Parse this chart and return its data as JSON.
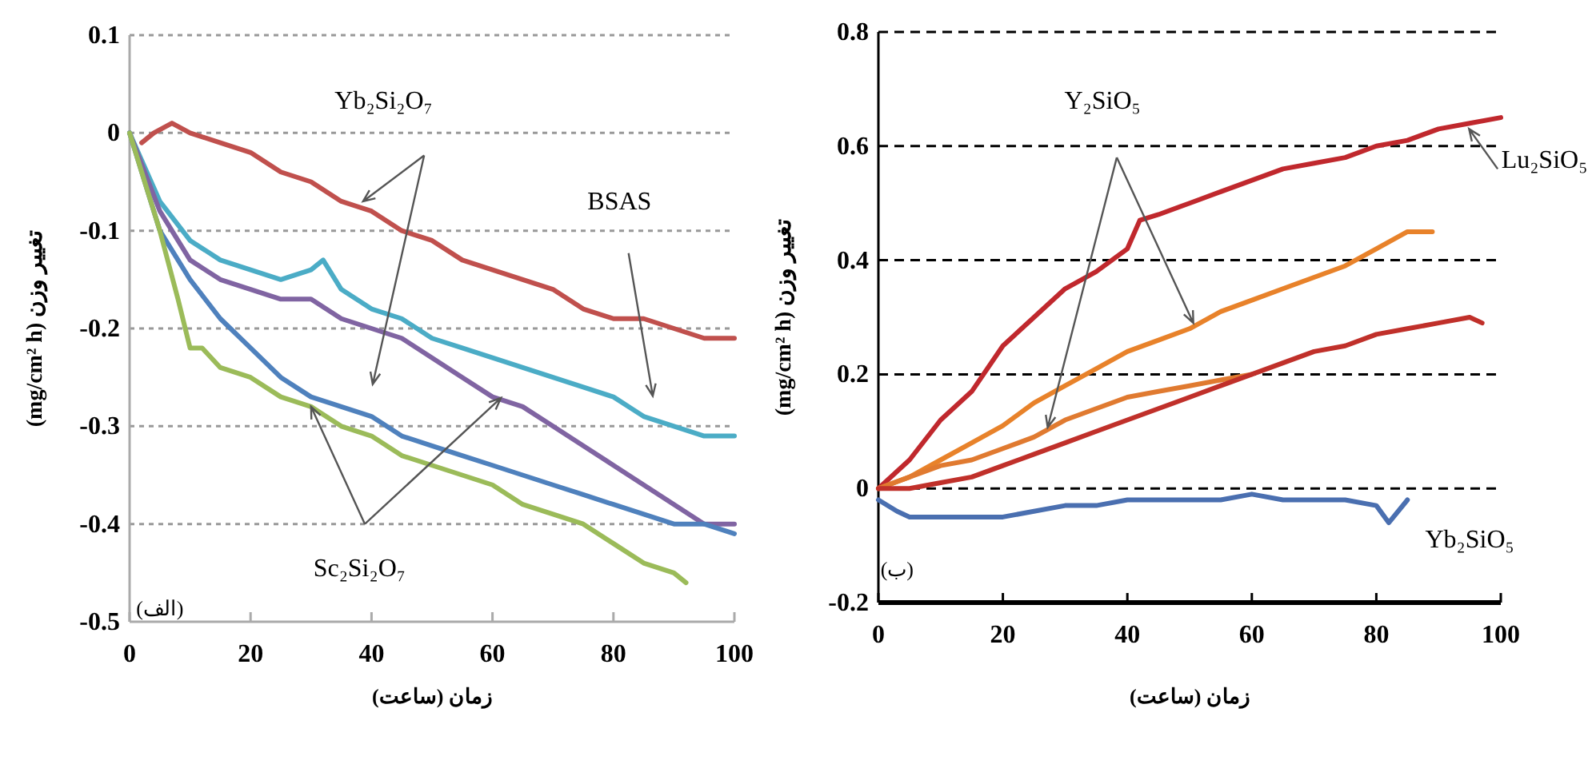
{
  "chart_data": [
    {
      "type": "line",
      "xlabel": "زمان (ساعت)",
      "ylabel": "تغییر وزن (mg/cm² h)",
      "xlim": [
        0,
        100
      ],
      "xticks": [
        0,
        20,
        40,
        60,
        80,
        100
      ],
      "ylim": [
        -0.5,
        0.1
      ],
      "yticks": [
        -0.5,
        -0.4,
        -0.3,
        -0.2,
        -0.1,
        0,
        0.1
      ],
      "grid": "y",
      "series": [
        {
          "color": "#c0504d",
          "x": [
            2,
            4,
            7,
            10,
            15,
            20,
            25,
            30,
            35,
            40,
            45,
            50,
            55,
            60,
            65,
            70,
            75,
            80,
            85,
            90,
            95,
            100
          ],
          "values": [
            -0.01,
            0.0,
            0.01,
            0.0,
            -0.01,
            -0.02,
            -0.04,
            -0.05,
            -0.07,
            -0.08,
            -0.1,
            -0.11,
            -0.13,
            -0.14,
            -0.15,
            -0.16,
            -0.18,
            -0.19,
            -0.19,
            -0.2,
            -0.21,
            -0.21
          ]
        },
        {
          "color": "#4bacc6",
          "x": [
            0,
            5,
            10,
            15,
            20,
            25,
            30,
            32,
            35,
            40,
            45,
            50,
            55,
            60,
            65,
            70,
            75,
            80,
            85,
            90,
            95,
            100
          ],
          "values": [
            0,
            -0.07,
            -0.11,
            -0.13,
            -0.14,
            -0.15,
            -0.14,
            -0.13,
            -0.16,
            -0.18,
            -0.19,
            -0.21,
            -0.22,
            -0.23,
            -0.24,
            -0.25,
            -0.26,
            -0.27,
            -0.29,
            -0.3,
            -0.31,
            -0.31
          ]
        },
        {
          "color": "#8064a2",
          "x": [
            0,
            5,
            10,
            15,
            20,
            25,
            30,
            35,
            40,
            45,
            50,
            55,
            60,
            65,
            70,
            75,
            80,
            85,
            90,
            95,
            100
          ],
          "values": [
            0,
            -0.08,
            -0.13,
            -0.15,
            -0.16,
            -0.17,
            -0.17,
            -0.19,
            -0.2,
            -0.21,
            -0.23,
            -0.25,
            -0.27,
            -0.28,
            -0.3,
            -0.32,
            -0.34,
            -0.36,
            -0.38,
            -0.4,
            -0.4
          ]
        },
        {
          "color": "#4f81bd",
          "x": [
            0,
            5,
            10,
            15,
            20,
            25,
            30,
            35,
            40,
            45,
            50,
            55,
            60,
            65,
            70,
            75,
            80,
            85,
            90,
            95,
            100
          ],
          "values": [
            0,
            -0.1,
            -0.15,
            -0.19,
            -0.22,
            -0.25,
            -0.27,
            -0.28,
            -0.29,
            -0.31,
            -0.32,
            -0.33,
            -0.34,
            -0.35,
            -0.36,
            -0.37,
            -0.38,
            -0.39,
            -0.4,
            -0.4,
            -0.41
          ]
        },
        {
          "color": "#9bbb59",
          "x": [
            0,
            3,
            5,
            8,
            10,
            12,
            15,
            20,
            25,
            30,
            35,
            40,
            45,
            50,
            55,
            60,
            65,
            70,
            75,
            80,
            85,
            90,
            92
          ],
          "values": [
            0,
            -0.06,
            -0.1,
            -0.17,
            -0.22,
            -0.22,
            -0.24,
            -0.25,
            -0.27,
            -0.28,
            -0.3,
            -0.31,
            -0.33,
            -0.34,
            -0.35,
            -0.36,
            -0.38,
            -0.39,
            -0.4,
            -0.42,
            -0.44,
            -0.45,
            -0.46
          ]
        }
      ],
      "annotations": [
        "Yb₂Si₂O₇",
        "BSAS",
        {
          "text": "Sc₂Si₂O₇",
          "x": 30,
          "y": -0.28
        },
        "(الف)"
      ]
    },
    {
      "type": "line",
      "xlabel": "زمان (ساعت)",
      "ylabel": "تغییر وزن (mg/cm² h)",
      "xlim": [
        0,
        100
      ],
      "xticks": [
        0,
        20,
        40,
        60,
        80,
        100
      ],
      "ylim": [
        -0.2,
        0.8
      ],
      "yticks": [
        -0.2,
        0,
        0.2,
        0.4,
        0.6,
        0.8
      ],
      "grid": "y",
      "series": [
        {
          "color": "#c0282d",
          "x": [
            0,
            3,
            5,
            10,
            15,
            20,
            25,
            30,
            35,
            40,
            42,
            45,
            50,
            55,
            60,
            65,
            70,
            75,
            80,
            85,
            90,
            95,
            100
          ],
          "values": [
            0,
            0.03,
            0.05,
            0.12,
            0.17,
            0.25,
            0.3,
            0.35,
            0.38,
            0.42,
            0.47,
            0.48,
            0.5,
            0.52,
            0.54,
            0.56,
            0.57,
            0.58,
            0.6,
            0.61,
            0.63,
            0.64,
            0.65
          ]
        },
        {
          "color": "#e8822a",
          "x": [
            0,
            5,
            10,
            15,
            20,
            25,
            30,
            35,
            40,
            45,
            50,
            55,
            60,
            65,
            70,
            75,
            80,
            85,
            89
          ],
          "values": [
            0,
            0.02,
            0.05,
            0.08,
            0.11,
            0.15,
            0.18,
            0.21,
            0.24,
            0.26,
            0.28,
            0.31,
            0.33,
            0.35,
            0.37,
            0.39,
            0.42,
            0.45,
            0.45
          ]
        },
        {
          "color": "#e07a30",
          "x": [
            0,
            5,
            10,
            15,
            20,
            25,
            30,
            35,
            40,
            45,
            50,
            55,
            60
          ],
          "values": [
            0,
            0.02,
            0.04,
            0.05,
            0.07,
            0.09,
            0.12,
            0.14,
            0.16,
            0.17,
            0.18,
            0.19,
            0.2
          ]
        },
        {
          "color": "#c0302a",
          "x": [
            0,
            5,
            10,
            15,
            20,
            25,
            30,
            35,
            40,
            45,
            50,
            55,
            60,
            65,
            70,
            75,
            80,
            85,
            90,
            95,
            97
          ],
          "values": [
            0,
            0.0,
            0.01,
            0.02,
            0.04,
            0.06,
            0.08,
            0.1,
            0.12,
            0.14,
            0.16,
            0.18,
            0.2,
            0.22,
            0.24,
            0.25,
            0.27,
            0.28,
            0.29,
            0.3,
            0.29
          ]
        },
        {
          "color": "#4a6fb0",
          "x": [
            0,
            3,
            5,
            10,
            15,
            20,
            25,
            30,
            35,
            40,
            45,
            50,
            55,
            60,
            65,
            70,
            75,
            80,
            82,
            85
          ],
          "values": [
            -0.02,
            -0.04,
            -0.05,
            -0.05,
            -0.05,
            -0.05,
            -0.04,
            -0.03,
            -0.03,
            -0.02,
            -0.02,
            -0.02,
            -0.02,
            -0.01,
            -0.02,
            -0.02,
            -0.02,
            -0.03,
            -0.06,
            -0.02
          ]
        }
      ],
      "annotations": [
        "Y₂SiO₅",
        "Lu₂SiO₅",
        "Yb₂SiO₅",
        "(ب)"
      ]
    }
  ]
}
